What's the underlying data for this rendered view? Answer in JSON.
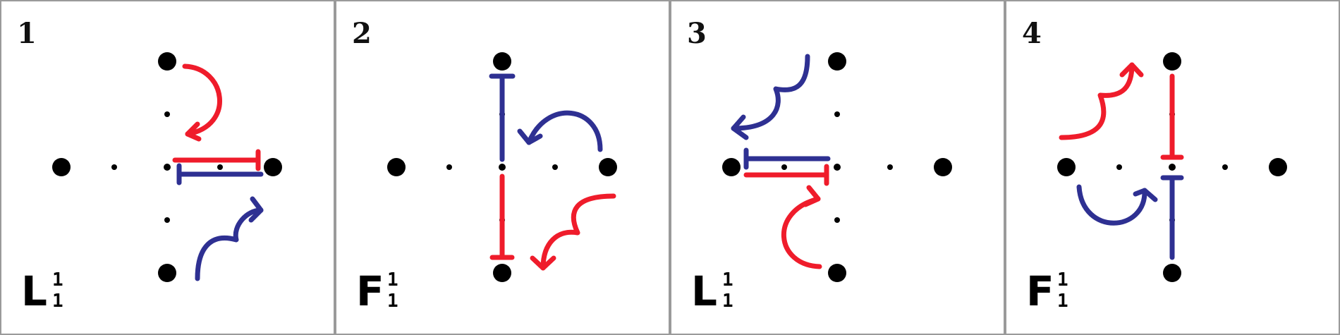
{
  "colors": {
    "red": "#EF1C2B",
    "blue": "#2E3092",
    "border": "#9a9a9a",
    "dot": "#000000"
  },
  "panels": [
    {
      "number": "1",
      "label": "L",
      "sup": "1",
      "sub": "1"
    },
    {
      "number": "2",
      "label": "F",
      "sup": "1",
      "sub": "1"
    },
    {
      "number": "3",
      "label": "L",
      "sup": "1",
      "sub": "1"
    },
    {
      "number": "4",
      "label": "F",
      "sup": "1",
      "sub": "1"
    }
  ]
}
